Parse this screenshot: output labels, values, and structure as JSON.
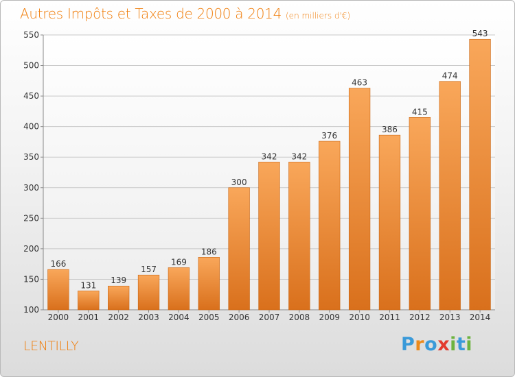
{
  "header": {
    "title": "Autres Impôts et Taxes de 2000 à 2014",
    "unit": "(en milliers d'€)"
  },
  "footer": {
    "location": "LENTILLY",
    "brand_letters": [
      "P",
      "r",
      "o",
      "x",
      "i",
      "t",
      "i"
    ],
    "brand_colors": [
      "#3a9ad9",
      "#ec8a1c",
      "#3a9ad9",
      "#e23a2f",
      "#6cb33e",
      "#3a9ad9",
      "#6cb33e"
    ]
  },
  "colors": {
    "accent": "#f07d0a",
    "bar_top": "#f9a75a",
    "bar_bottom": "#d9701c",
    "grid": "#c8c8c8"
  },
  "chart_data": {
    "type": "bar",
    "title": "Autres Impôts et Taxes de 2000 à 2014",
    "subtitle": "(en milliers d'€)",
    "xlabel": "",
    "ylabel": "",
    "categories": [
      "2000",
      "2001",
      "2002",
      "2003",
      "2004",
      "2005",
      "2006",
      "2007",
      "2008",
      "2009",
      "2010",
      "2011",
      "2012",
      "2013",
      "2014"
    ],
    "values": [
      166,
      131,
      139,
      157,
      169,
      186,
      300,
      342,
      342,
      376,
      463,
      386,
      415,
      474,
      543
    ],
    "ylim": [
      100,
      550
    ],
    "yticks": [
      100,
      150,
      200,
      250,
      300,
      350,
      400,
      450,
      500,
      550
    ],
    "grid": true,
    "data_labels": true
  }
}
